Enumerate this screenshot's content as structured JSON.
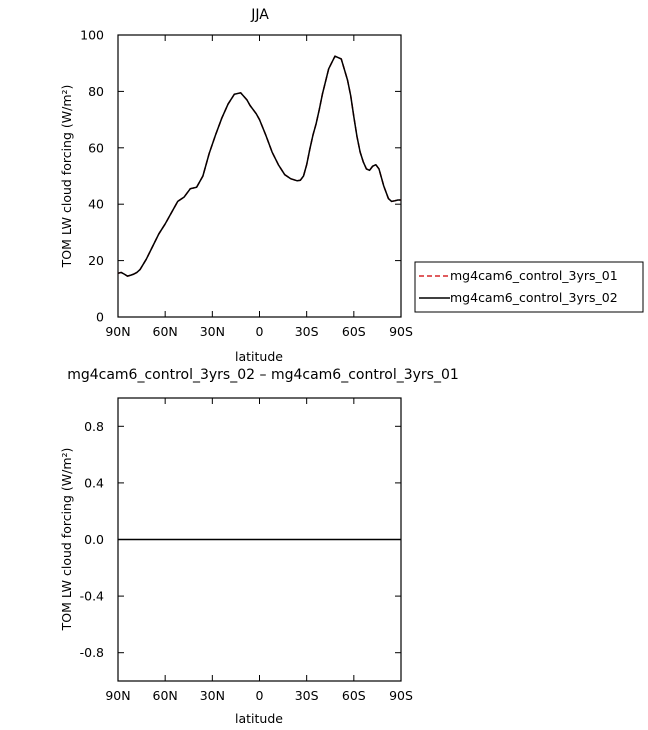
{
  "chart_data": [
    {
      "type": "line",
      "title": "JJA",
      "xlabel": "latitude",
      "ylabel": "TOM LW cloud forcing (W/m²)",
      "xlim": [
        90,
        -90
      ],
      "ylim": [
        0,
        100
      ],
      "xticks": [
        90,
        60,
        30,
        0,
        -30,
        -60,
        -90
      ],
      "xtick_labels": [
        "90N",
        "60N",
        "30N",
        "0",
        "30S",
        "60S",
        "90S"
      ],
      "yticks": [
        0,
        20,
        40,
        60,
        80,
        100
      ],
      "ytick_labels": [
        "0",
        "20",
        "40",
        "60",
        "80",
        "100"
      ],
      "grid": false,
      "legend_position": "right",
      "series": [
        {
          "name": "mg4cam6_control_3yrs_01",
          "color": "#d62728",
          "dash": "dashed",
          "x": [
            90,
            88,
            86,
            84,
            82,
            80,
            78,
            76,
            72,
            68,
            64,
            60,
            56,
            52,
            48,
            44,
            40,
            36,
            32,
            28,
            24,
            20,
            16,
            12,
            8,
            6,
            4,
            2,
            0,
            -4,
            -8,
            -12,
            -16,
            -20,
            -24,
            -26,
            -28,
            -30,
            -32,
            -34,
            -36,
            -38,
            -40,
            -44,
            -48,
            -52,
            -56,
            -58,
            -60,
            -62,
            -64,
            -66,
            -68,
            -70,
            -72,
            -74,
            -76,
            -78,
            -79,
            -80,
            -82,
            -84,
            -86,
            -88,
            -89,
            -90
          ],
          "y": [
            15.5,
            15.8,
            15.2,
            14.5,
            14.8,
            15.2,
            15.8,
            16.8,
            20.5,
            25.0,
            29.5,
            33.0,
            37.0,
            41.0,
            42.5,
            45.5,
            46.0,
            50.0,
            58.0,
            64.5,
            70.5,
            75.5,
            79.0,
            79.5,
            77.0,
            75.0,
            73.5,
            72.0,
            70.0,
            64.5,
            58.5,
            54.0,
            50.5,
            49.0,
            48.3,
            48.5,
            50.0,
            54.0,
            59.5,
            64.5,
            68.5,
            73.5,
            79.0,
            88.0,
            92.5,
            91.5,
            84.0,
            78.5,
            71.0,
            64.0,
            58.5,
            55.0,
            52.5,
            52.0,
            53.5,
            54.0,
            52.5,
            48.5,
            46.5,
            45.0,
            42.0,
            41.0,
            41.2,
            41.5,
            41.5,
            41.5
          ]
        },
        {
          "name": "mg4cam6_control_3yrs_02",
          "color": "#000000",
          "dash": "solid",
          "x": [
            90,
            88,
            86,
            84,
            82,
            80,
            78,
            76,
            72,
            68,
            64,
            60,
            56,
            52,
            48,
            44,
            40,
            36,
            32,
            28,
            24,
            20,
            16,
            12,
            8,
            6,
            4,
            2,
            0,
            -4,
            -8,
            -12,
            -16,
            -20,
            -24,
            -26,
            -28,
            -30,
            -32,
            -34,
            -36,
            -38,
            -40,
            -44,
            -48,
            -52,
            -56,
            -58,
            -60,
            -62,
            -64,
            -66,
            -68,
            -70,
            -72,
            -74,
            -76,
            -78,
            -79,
            -80,
            -82,
            -84,
            -86,
            -88,
            -89,
            -90
          ],
          "y": [
            15.5,
            15.8,
            15.2,
            14.5,
            14.8,
            15.2,
            15.8,
            16.8,
            20.5,
            25.0,
            29.5,
            33.0,
            37.0,
            41.0,
            42.5,
            45.5,
            46.0,
            50.0,
            58.0,
            64.5,
            70.5,
            75.5,
            79.0,
            79.5,
            77.0,
            75.0,
            73.5,
            72.0,
            70.0,
            64.5,
            58.5,
            54.0,
            50.5,
            49.0,
            48.3,
            48.5,
            50.0,
            54.0,
            59.5,
            64.5,
            68.5,
            73.5,
            79.0,
            88.0,
            92.5,
            91.5,
            84.0,
            78.5,
            71.0,
            64.0,
            58.5,
            55.0,
            52.5,
            52.0,
            53.5,
            54.0,
            52.5,
            48.5,
            46.5,
            45.0,
            42.0,
            41.0,
            41.2,
            41.5,
            41.5,
            41.5
          ]
        }
      ]
    },
    {
      "type": "line",
      "title": "mg4cam6_control_3yrs_02 – mg4cam6_control_3yrs_01",
      "xlabel": "latitude",
      "ylabel": "TOM LW cloud forcing (W/m²)",
      "xlim": [
        90,
        -90
      ],
      "ylim": [
        -1,
        1
      ],
      "xticks": [
        90,
        60,
        30,
        0,
        -30,
        -60,
        -90
      ],
      "xtick_labels": [
        "90N",
        "60N",
        "30N",
        "0",
        "30S",
        "60S",
        "90S"
      ],
      "yticks": [
        -0.8,
        -0.4,
        0.0,
        0.4,
        0.8
      ],
      "ytick_labels": [
        "-0.8",
        "-0.4",
        "0.0",
        "0.4",
        "0.8"
      ],
      "grid": false,
      "series": [
        {
          "color": "#000000",
          "dash": "solid",
          "x": [
            90,
            -90
          ],
          "y": [
            0,
            0
          ]
        }
      ]
    }
  ]
}
